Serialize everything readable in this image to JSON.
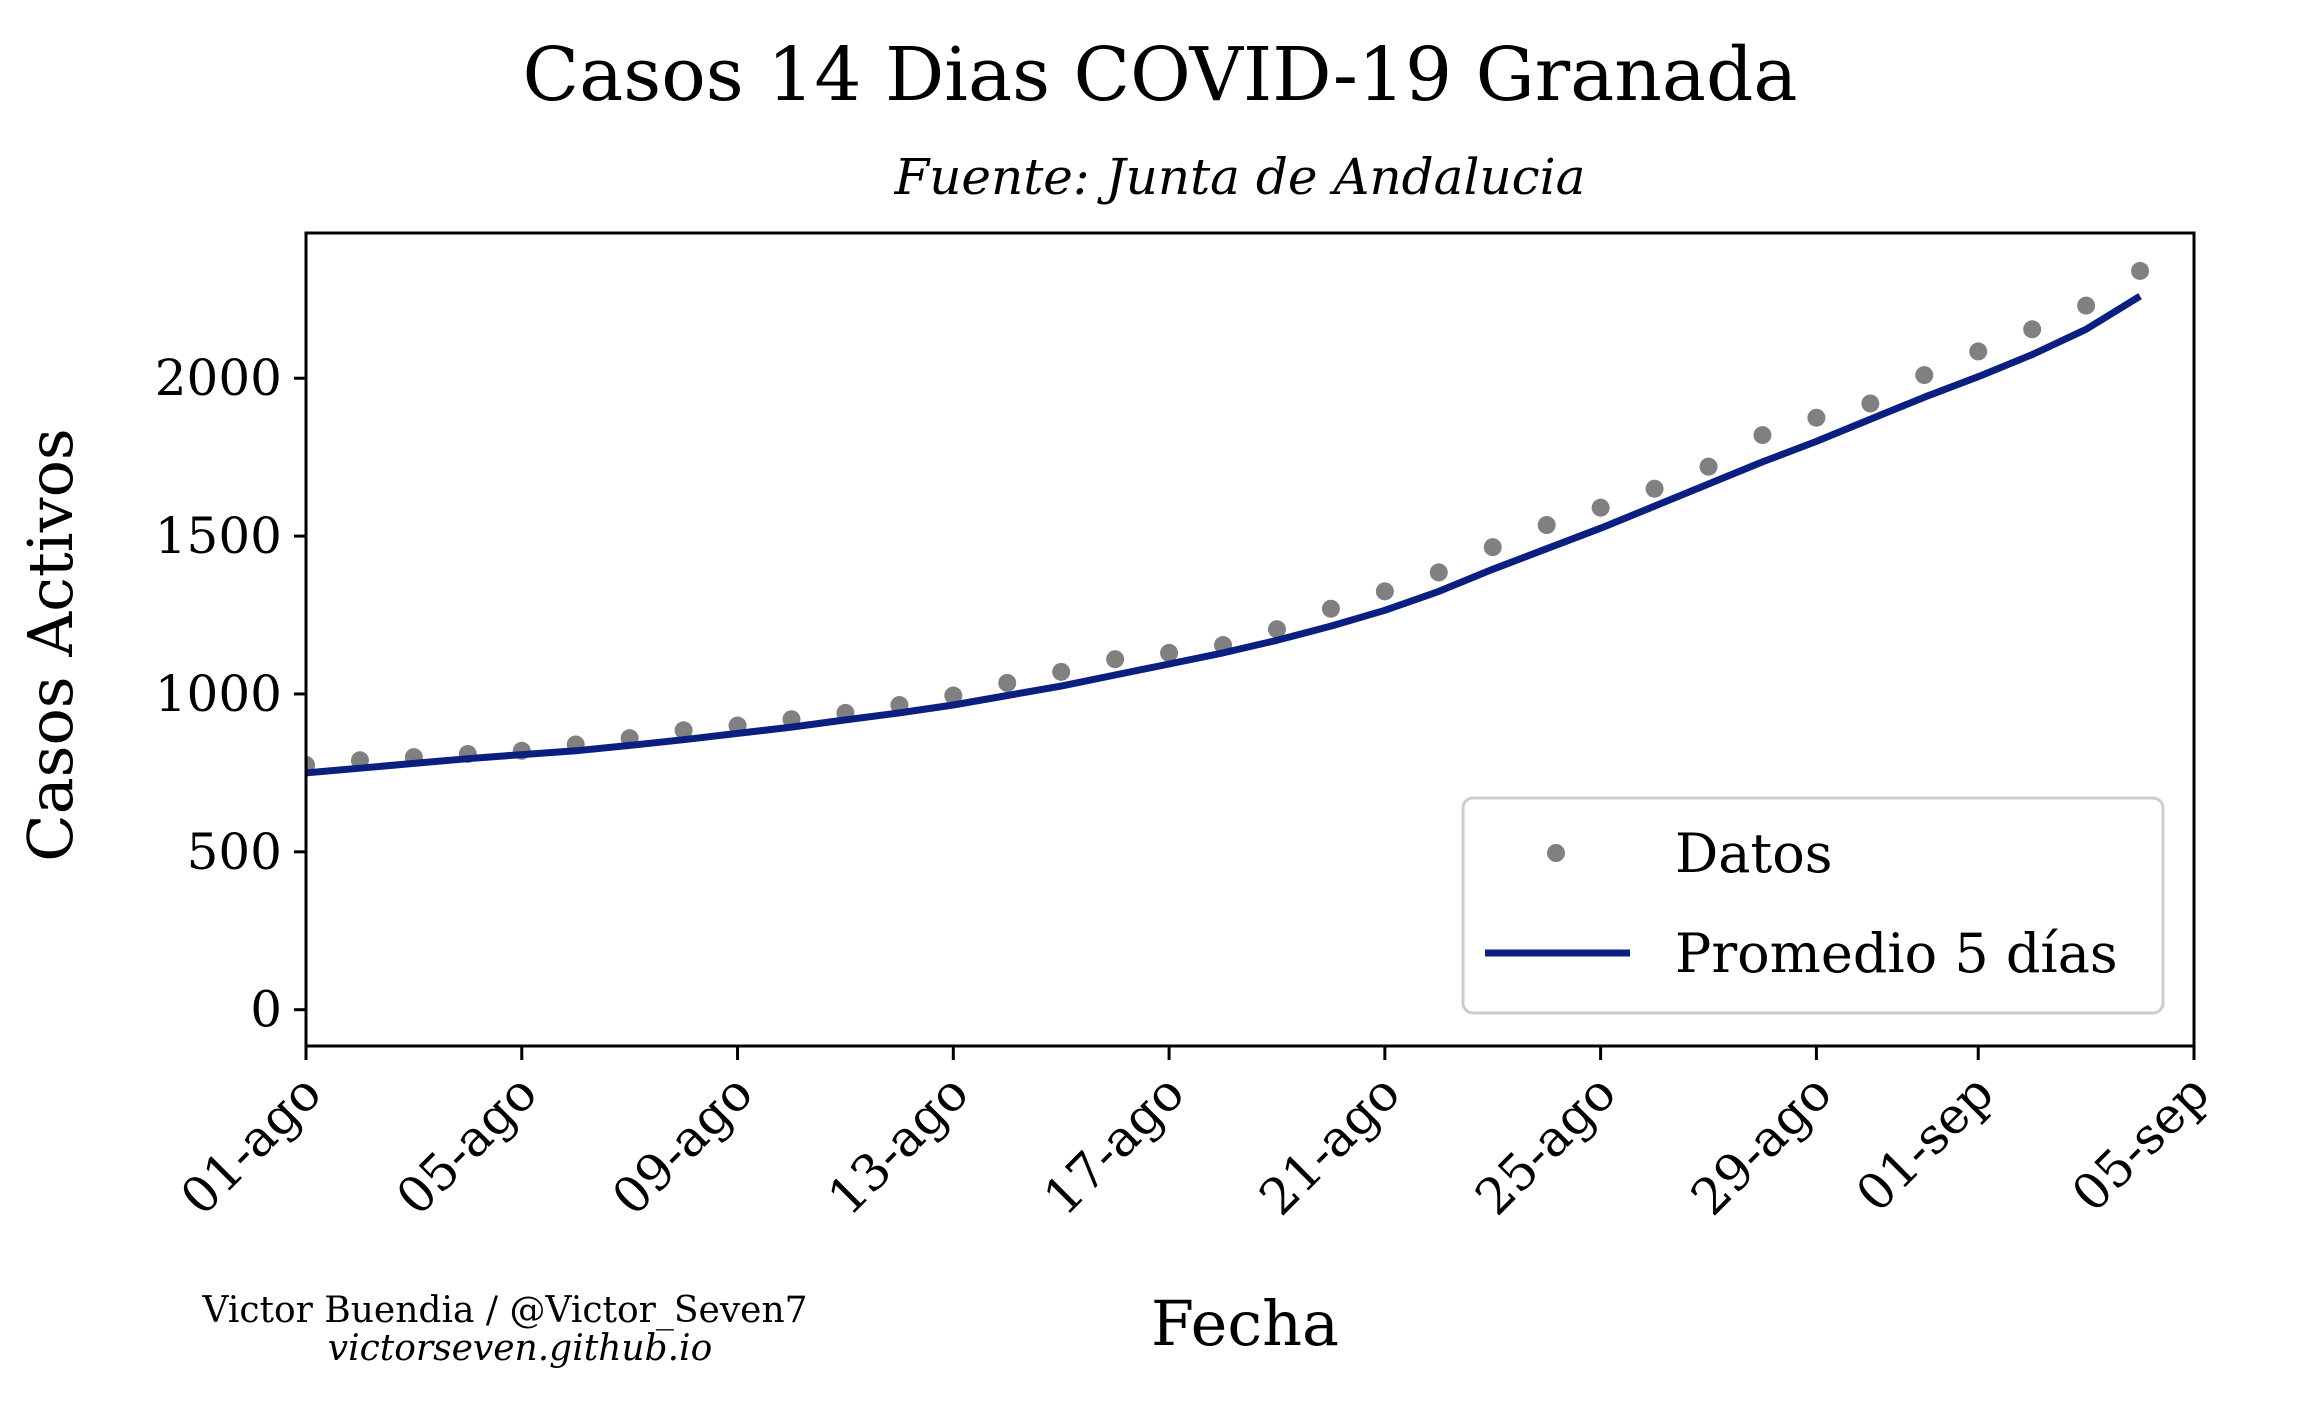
{
  "header": {
    "title": "Casos 14 Dias COVID-19 Granada",
    "subtitle": "Fuente: Junta de Andalucia"
  },
  "credits": {
    "author": "Victor Buendia / @Victor_Seven7",
    "site": "victorseven.github.io"
  },
  "colors": {
    "datos": "#808080",
    "promedio": "#0a1f80",
    "axis": "#000000",
    "background": "#ffffff"
  },
  "chart_data": {
    "type": "line",
    "title": "Casos 14 Dias COVID-19 Granada",
    "subtitle": "Fuente: Junta de Andalucia",
    "xlabel": "Fecha",
    "ylabel": "Casos Activos",
    "x_ticks": [
      "01-ago",
      "05-ago",
      "09-ago",
      "13-ago",
      "17-ago",
      "21-ago",
      "25-ago",
      "29-ago",
      "01-sep",
      "05-sep"
    ],
    "x_tick_dates": [
      "2020-08-01",
      "2020-08-05",
      "2020-08-09",
      "2020-08-13",
      "2020-08-17",
      "2020-08-21",
      "2020-08-25",
      "2020-08-29",
      "2020-09-01",
      "2020-09-05"
    ],
    "y_ticks": [
      0,
      500,
      1000,
      1500,
      2000
    ],
    "xlim": [
      "2020-08-01",
      "2020-09-05"
    ],
    "ylim": [
      -115,
      2460
    ],
    "grid": false,
    "legend": "lower right",
    "series": [
      {
        "name": "Datos",
        "style": "dots",
        "color": "#808080",
        "x": [
          "2020-08-01",
          "2020-08-02",
          "2020-08-03",
          "2020-08-04",
          "2020-08-05",
          "2020-08-06",
          "2020-08-07",
          "2020-08-08",
          "2020-08-09",
          "2020-08-10",
          "2020-08-11",
          "2020-08-12",
          "2020-08-13",
          "2020-08-14",
          "2020-08-15",
          "2020-08-16",
          "2020-08-17",
          "2020-08-18",
          "2020-08-19",
          "2020-08-20",
          "2020-08-21",
          "2020-08-22",
          "2020-08-23",
          "2020-08-24",
          "2020-08-25",
          "2020-08-26",
          "2020-08-27",
          "2020-08-28",
          "2020-08-29",
          "2020-08-30",
          "2020-08-31",
          "2020-09-01",
          "2020-09-02",
          "2020-09-03",
          "2020-09-04"
        ],
        "values": [
          775,
          790,
          800,
          810,
          820,
          840,
          860,
          885,
          900,
          920,
          940,
          965,
          995,
          1035,
          1070,
          1110,
          1130,
          1155,
          1205,
          1270,
          1325,
          1385,
          1465,
          1535,
          1590,
          1650,
          1720,
          1820,
          1875,
          1920,
          2010,
          2085,
          2155,
          2230,
          2340
        ]
      },
      {
        "name": "Promedio 5 días",
        "style": "line",
        "color": "#0a1f80",
        "x": [
          "2020-08-01",
          "2020-08-02",
          "2020-08-03",
          "2020-08-04",
          "2020-08-05",
          "2020-08-06",
          "2020-08-07",
          "2020-08-08",
          "2020-08-09",
          "2020-08-10",
          "2020-08-11",
          "2020-08-12",
          "2020-08-13",
          "2020-08-14",
          "2020-08-15",
          "2020-08-16",
          "2020-08-17",
          "2020-08-18",
          "2020-08-19",
          "2020-08-20",
          "2020-08-21",
          "2020-08-22",
          "2020-08-23",
          "2020-08-24",
          "2020-08-25",
          "2020-08-26",
          "2020-08-27",
          "2020-08-28",
          "2020-08-29",
          "2020-08-30",
          "2020-08-31",
          "2020-09-01",
          "2020-09-02",
          "2020-09-03",
          "2020-09-04"
        ],
        "values": [
          750,
          765,
          780,
          795,
          808,
          820,
          837,
          855,
          875,
          895,
          918,
          940,
          965,
          995,
          1025,
          1060,
          1095,
          1130,
          1170,
          1215,
          1265,
          1325,
          1395,
          1460,
          1525,
          1595,
          1665,
          1735,
          1800,
          1870,
          1940,
          2005,
          2075,
          2155,
          2260
        ]
      }
    ]
  }
}
